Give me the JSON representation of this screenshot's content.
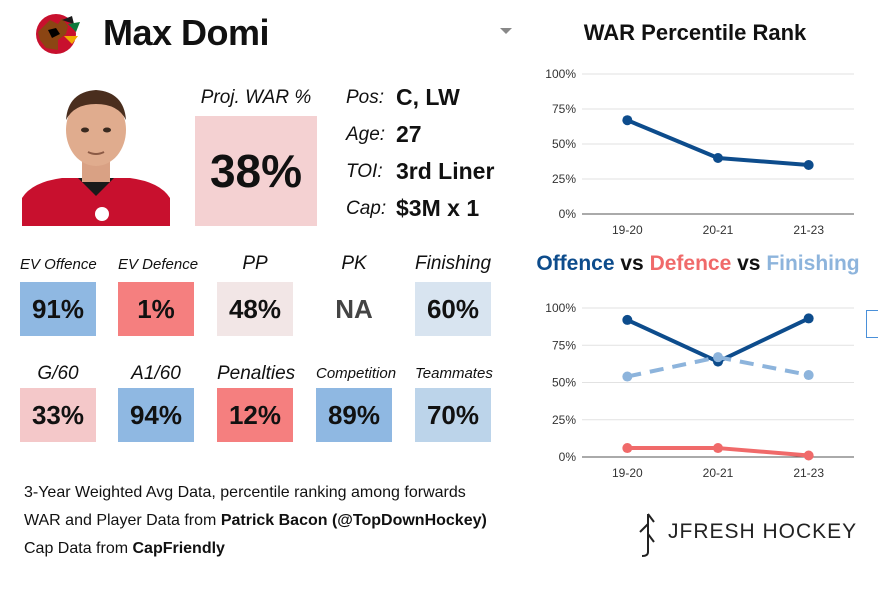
{
  "player": {
    "name": "Max Domi",
    "proj_war_label": "Proj. WAR %",
    "proj_war_value": "38%",
    "info": [
      {
        "label": "Pos:",
        "value": "C, LW"
      },
      {
        "label": "Age:",
        "value": "27"
      },
      {
        "label": "TOI:",
        "value": "3rd Liner"
      },
      {
        "label": "Cap:",
        "value": "$3M x 1"
      }
    ]
  },
  "stats": [
    {
      "label": "EV Offence",
      "value": "91%",
      "color": "#8fb8e2"
    },
    {
      "label": "EV Defence",
      "value": "1%",
      "color": "#f57f7f"
    },
    {
      "label": "PP",
      "value": "48%",
      "color": "#f2e6e6"
    },
    {
      "label": "PK",
      "value": "NA",
      "color": "#ffffff"
    },
    {
      "label": "Finishing",
      "value": "60%",
      "color": "#d8e4f0"
    },
    {
      "label": "G/60",
      "value": "33%",
      "color": "#f4c8c9"
    },
    {
      "label": "A1/60",
      "value": "94%",
      "color": "#8fb8e2"
    },
    {
      "label": "Penalties",
      "value": "12%",
      "color": "#f57f7f"
    },
    {
      "label": "Competition",
      "value": "89%",
      "color": "#8fb8e2"
    },
    {
      "label": "Teammates",
      "value": "70%",
      "color": "#bcd4ea"
    }
  ],
  "footer": {
    "line1": "3-Year Weighted Avg Data, percentile ranking among forwards",
    "line2_prefix": "WAR and Player Data from ",
    "line2_bold": "Patrick Bacon (@TopDownHockey)",
    "line3_prefix": "Cap Data from ",
    "line3_bold": "CapFriendly"
  },
  "brand": {
    "text": "JFRESH HOCKEY"
  },
  "titles": {
    "war_chart": "WAR Percentile Rank",
    "ovd_offence": "Offence",
    "ovd_vs1": " vs ",
    "ovd_defence": "Defence",
    "ovd_vs2": " vs ",
    "ovd_finishing": "Finishing"
  },
  "colors": {
    "offence": "#0d4c8c",
    "defence": "#f06a6a",
    "finishing": "#8db4dc"
  },
  "chart_data": [
    {
      "type": "line",
      "title": "WAR Percentile Rank",
      "categories": [
        "19-20",
        "20-21",
        "21-23"
      ],
      "series": [
        {
          "values": [
            67,
            40,
            35
          ]
        }
      ],
      "ylim": [
        0,
        100
      ],
      "yticks": [
        "0%",
        "25%",
        "50%",
        "75%",
        "100%"
      ],
      "grid": true
    },
    {
      "type": "line",
      "title": "Offence vs Defence vs Finishing",
      "categories": [
        "19-20",
        "20-21",
        "21-23"
      ],
      "series": [
        {
          "name": "Offence",
          "values": [
            92,
            64,
            93
          ]
        },
        {
          "name": "Defence",
          "values": [
            6,
            6,
            1
          ]
        },
        {
          "name": "Finishing",
          "values": [
            54,
            67,
            55
          ]
        }
      ],
      "ylim": [
        0,
        100
      ],
      "yticks": [
        "0%",
        "25%",
        "50%",
        "75%",
        "100%"
      ],
      "grid": true
    }
  ]
}
